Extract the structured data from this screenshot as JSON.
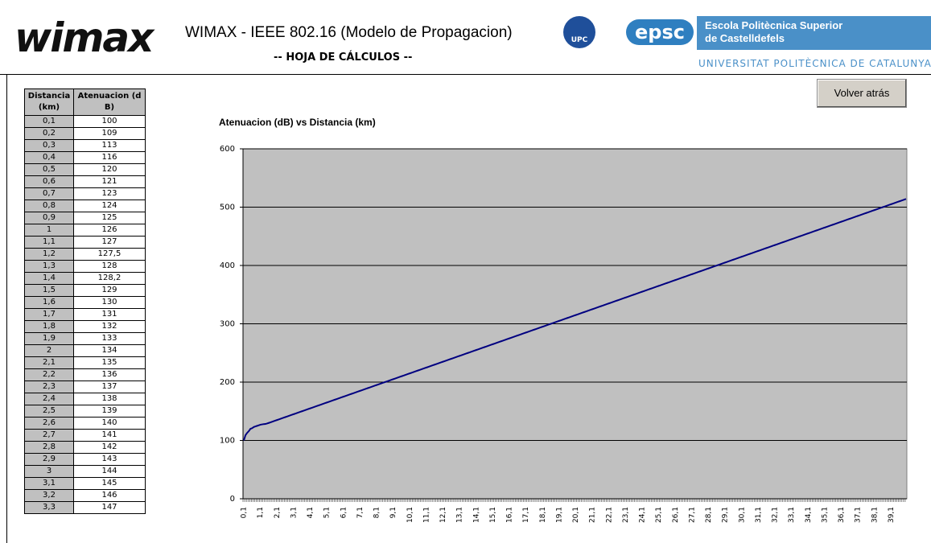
{
  "header": {
    "logo": "wimax",
    "title": "WIMAX - IEEE 802.16 (Modelo de Propagacion)",
    "subtitle": "-- HOJA DE CÁLCULOS --",
    "upc": "UPC",
    "epsc": "epsc",
    "school": [
      "Escola Politècnica Superior",
      "de Castelldefels"
    ],
    "university": "UNIVERSITAT POLITÈCNICA DE CATALUNYA"
  },
  "button": "Volver atrás",
  "table": {
    "columns": [
      "Distancia (km)",
      "Atenuacion (dB)"
    ],
    "rows": [
      [
        "0,1",
        "100"
      ],
      [
        "0,2",
        "109"
      ],
      [
        "0,3",
        "113"
      ],
      [
        "0,4",
        "116"
      ],
      [
        "0,5",
        "120"
      ],
      [
        "0,6",
        "121"
      ],
      [
        "0,7",
        "123"
      ],
      [
        "0,8",
        "124"
      ],
      [
        "0,9",
        "125"
      ],
      [
        "1",
        "126"
      ],
      [
        "1,1",
        "127"
      ],
      [
        "1,2",
        "127,5"
      ],
      [
        "1,3",
        "128"
      ],
      [
        "1,4",
        "128,2"
      ],
      [
        "1,5",
        "129"
      ],
      [
        "1,6",
        "130"
      ],
      [
        "1,7",
        "131"
      ],
      [
        "1,8",
        "132"
      ],
      [
        "1,9",
        "133"
      ],
      [
        "2",
        "134"
      ],
      [
        "2,1",
        "135"
      ],
      [
        "2,2",
        "136"
      ],
      [
        "2,3",
        "137"
      ],
      [
        "2,4",
        "138"
      ],
      [
        "2,5",
        "139"
      ],
      [
        "2,6",
        "140"
      ],
      [
        "2,7",
        "141"
      ],
      [
        "2,8",
        "142"
      ],
      [
        "2,9",
        "143"
      ],
      [
        "3",
        "144"
      ],
      [
        "3,1",
        "145"
      ],
      [
        "3,2",
        "146"
      ],
      [
        "3,3",
        "147"
      ]
    ]
  },
  "chart_data": {
    "type": "line",
    "title": "Atenuacion (dB) vs Distancia (km)",
    "color": "#000080",
    "grid": true,
    "ylim": [
      0,
      600
    ],
    "yticks": [
      0,
      100,
      200,
      300,
      400,
      500,
      600
    ],
    "categories": [
      "0,1",
      null,
      null,
      null,
      null,
      null,
      null,
      null,
      null,
      null,
      "1,1",
      null,
      null,
      null,
      null,
      null,
      null,
      null,
      null,
      null,
      "2,1",
      null,
      null,
      null,
      null,
      null,
      null,
      null,
      null,
      null,
      "3,1",
      null,
      null,
      null,
      null,
      null,
      null,
      null,
      null,
      null,
      "4,1",
      null,
      null,
      null,
      null,
      null,
      null,
      null,
      null,
      null,
      "5,1",
      null,
      null,
      null,
      null,
      null,
      null,
      null,
      null,
      null,
      "6,1",
      null,
      null,
      null,
      null,
      null,
      null,
      null,
      null,
      null,
      "7,1",
      null,
      null,
      null,
      null,
      null,
      null,
      null,
      null,
      null,
      "8,1",
      null,
      null,
      null,
      null,
      null,
      null,
      null,
      null,
      null,
      "9,1",
      null,
      null,
      null,
      null,
      null,
      null,
      null,
      null,
      null,
      "10,1",
      null,
      null,
      null,
      null,
      null,
      null,
      null,
      null,
      null,
      "11,1",
      null,
      null,
      null,
      null,
      null,
      null,
      null,
      null,
      null,
      "12,1",
      null,
      null,
      null,
      null,
      null,
      null,
      null,
      null,
      null,
      "13,1",
      null,
      null,
      null,
      null,
      null,
      null,
      null,
      null,
      null,
      "14,1",
      null,
      null,
      null,
      null,
      null,
      null,
      null,
      null,
      null,
      "15,1",
      null,
      null,
      null,
      null,
      null,
      null,
      null,
      null,
      null,
      "16,1",
      null,
      null,
      null,
      null,
      null,
      null,
      null,
      null,
      null,
      "17,1",
      null,
      null,
      null,
      null,
      null,
      null,
      null,
      null,
      null,
      "18,1",
      null,
      null,
      null,
      null,
      null,
      null,
      null,
      null,
      null,
      "19,1",
      null,
      null,
      null,
      null,
      null,
      null,
      null,
      null,
      null,
      "20,1",
      null,
      null,
      null,
      null,
      null,
      null,
      null,
      null,
      null,
      "21,1",
      null,
      null,
      null,
      null,
      null,
      null,
      null,
      null,
      null,
      "22,1",
      null,
      null,
      null,
      null,
      null,
      null,
      null,
      null,
      null,
      "23,1",
      null,
      null,
      null,
      null,
      null,
      null,
      null,
      null,
      null,
      "24,1",
      null,
      null,
      null,
      null,
      null,
      null,
      null,
      null,
      null,
      "25,1",
      null,
      null,
      null,
      null,
      null,
      null,
      null,
      null,
      null,
      "26,1",
      null,
      null,
      null,
      null,
      null,
      null,
      null,
      null,
      null,
      "27,1",
      null,
      null,
      null,
      null,
      null,
      null,
      null,
      null,
      null,
      "28,1",
      null,
      null,
      null,
      null,
      null,
      null,
      null,
      null,
      null,
      "29,1",
      null,
      null,
      null,
      null,
      null,
      null,
      null,
      null,
      null,
      "30,1",
      null,
      null,
      null,
      null,
      null,
      null,
      null,
      null,
      null,
      "31,1",
      null,
      null,
      null,
      null,
      null,
      null,
      null,
      null,
      null,
      "32,1",
      null,
      null,
      null,
      null,
      null,
      null,
      null,
      null,
      null,
      "33,1",
      null,
      null,
      null,
      null,
      null,
      null,
      null,
      null,
      null,
      "34,1",
      null,
      null,
      null,
      null,
      null,
      null,
      null,
      null,
      null,
      "35,1",
      null,
      null,
      null,
      null,
      null,
      null,
      null,
      null,
      null,
      "36,1",
      null,
      null,
      null,
      null,
      null,
      null,
      null,
      null,
      null,
      "37,1",
      null,
      null,
      null,
      null,
      null,
      null,
      null,
      null,
      null,
      "38,1",
      null,
      null,
      null,
      null,
      null,
      null,
      null,
      null,
      null,
      "39,1",
      null,
      null,
      null,
      null,
      null,
      null,
      null,
      null,
      null
    ],
    "values": [
      100,
      109,
      113,
      116,
      120,
      121,
      123,
      124,
      125,
      126,
      127,
      127.5,
      128,
      128.2,
      129,
      130,
      131,
      132,
      133,
      134,
      135,
      136,
      137,
      138,
      139,
      140,
      141,
      142,
      143,
      144,
      145,
      146,
      147,
      148,
      149,
      150,
      151,
      152,
      153,
      154,
      155,
      156,
      157,
      158,
      159,
      160,
      161,
      162,
      163,
      164,
      165,
      166,
      167,
      168,
      169,
      170,
      171,
      172,
      173,
      174,
      175,
      176,
      177,
      178,
      179,
      180,
      181,
      182,
      183,
      184,
      185,
      186,
      187,
      188,
      189,
      190,
      191,
      192,
      193,
      194,
      195,
      196,
      197,
      198,
      199,
      200,
      201,
      202,
      203,
      204,
      205,
      206,
      207,
      208,
      209,
      210,
      211,
      212,
      213,
      214,
      215,
      216,
      217,
      218,
      219,
      220,
      221,
      222,
      223,
      224,
      225,
      226,
      227,
      228,
      229,
      230,
      231,
      232,
      233,
      234,
      235,
      236,
      237,
      238,
      239,
      240,
      241,
      242,
      243,
      244,
      245,
      246,
      247,
      248,
      249,
      250,
      251,
      252,
      253,
      254,
      255,
      256,
      257,
      258,
      259,
      260,
      261,
      262,
      263,
      264,
      265,
      266,
      267,
      268,
      269,
      270,
      271,
      272,
      273,
      274,
      275,
      276,
      277,
      278,
      279,
      280,
      281,
      282,
      283,
      284,
      285,
      286,
      287,
      288,
      289,
      290,
      291,
      292,
      293,
      294,
      295,
      296,
      297,
      298,
      299,
      300,
      301,
      302,
      303,
      304,
      305,
      306,
      307,
      308,
      309,
      310,
      311,
      312,
      313,
      314,
      315,
      316,
      317,
      318,
      319,
      320,
      321,
      322,
      323,
      324,
      325,
      326,
      327,
      328,
      329,
      330,
      331,
      332,
      333,
      334,
      335,
      336,
      337,
      338,
      339,
      340,
      341,
      342,
      343,
      344,
      345,
      346,
      347,
      348,
      349,
      350,
      351,
      352,
      353,
      354,
      355,
      356,
      357,
      358,
      359,
      360,
      361,
      362,
      363,
      364,
      365,
      366,
      367,
      368,
      369,
      370,
      371,
      372,
      373,
      374,
      375,
      376,
      377,
      378,
      379,
      380,
      381,
      382,
      383,
      384,
      385,
      386,
      387,
      388,
      389,
      390,
      391,
      392,
      393,
      394,
      395,
      396,
      397,
      398,
      399,
      400,
      401,
      402,
      403,
      404,
      405,
      406,
      407,
      408,
      409,
      410,
      411,
      412,
      413,
      414,
      415,
      416,
      417,
      418,
      419,
      420,
      421,
      422,
      423,
      424,
      425,
      426,
      427,
      428,
      429,
      430,
      431,
      432,
      433,
      434,
      435,
      436,
      437,
      438,
      439,
      440,
      441,
      442,
      443,
      444,
      445,
      446,
      447,
      448,
      449,
      450,
      451,
      452,
      453,
      454,
      455,
      456,
      457,
      458,
      459,
      460,
      461,
      462,
      463,
      464,
      465,
      466,
      467,
      468,
      469,
      470,
      471,
      472,
      473,
      474,
      475,
      476,
      477,
      478,
      479,
      480,
      481,
      482,
      483,
      484,
      485,
      486,
      487,
      488,
      489,
      490,
      491,
      492,
      493,
      494,
      495,
      496,
      497,
      498,
      499,
      500,
      501,
      502,
      503,
      504,
      505,
      506,
      507,
      508,
      509,
      510,
      511,
      512,
      513,
      514
    ]
  }
}
